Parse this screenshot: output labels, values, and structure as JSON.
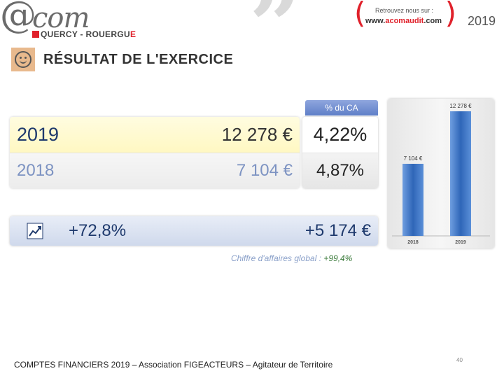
{
  "header": {
    "logo_at": "@",
    "logo_com": "com",
    "logo_sub_a": "QUERCY - ROUERGU",
    "logo_sub_e": "E",
    "audit_line1": "Retrouvez nous sur :",
    "audit_www": "www.",
    "audit_brand": "acomaudit",
    "audit_tld": ".com",
    "year": "2019",
    "quote_glyph": "”"
  },
  "title": "RÉSULTAT DE L'EXERCICE",
  "results": {
    "pct_header": "% du CA",
    "rows": [
      {
        "year": "2019",
        "value": "12 278 €",
        "pct": "4,22%"
      },
      {
        "year": "2018",
        "value": "7 104 €",
        "pct": "4,87%"
      }
    ]
  },
  "evolution": {
    "pct": "+72,8%",
    "amount": "+5 174 €"
  },
  "ca_note": {
    "label": "Chiffre d'affaires global : ",
    "value": "+99,4%"
  },
  "chart_data": {
    "type": "bar",
    "categories": [
      "2018",
      "2019"
    ],
    "values": [
      7104,
      12278
    ],
    "data_labels": [
      "7 104 €",
      "12 278 €"
    ],
    "title": "",
    "xlabel": "",
    "ylabel": "",
    "ylim": [
      0,
      12278
    ],
    "grid": false,
    "bar_color": "#4f84cc"
  },
  "footer": "COMPTES FINANCIERS  2019 – Association FIGEACTEURS – Agitateur de Territoire",
  "page_number": "40",
  "colors": {
    "accent_red": "#e0212b",
    "navy": "#1f3a6d",
    "bar_blue": "#4f84cc"
  }
}
